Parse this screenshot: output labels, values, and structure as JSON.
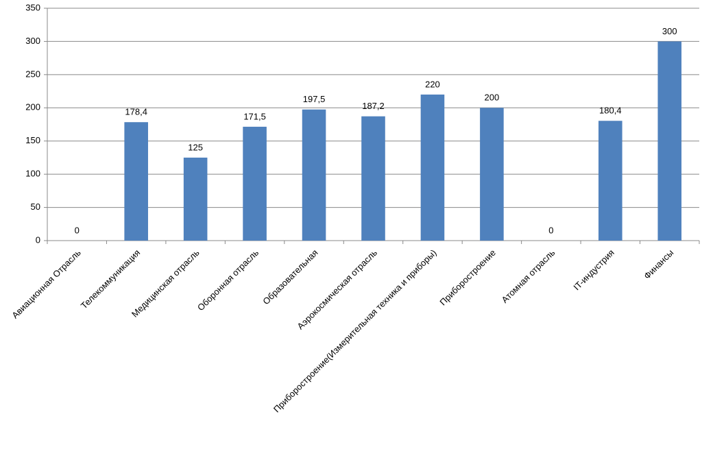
{
  "chart_data": {
    "type": "bar",
    "categories": [
      "Авиационная Отрасль",
      "Телекоммуникация",
      "Медицинская отрасль",
      "Оборонная отрасль",
      "Образовательная",
      "Аэрокосмическая отрасль",
      "Приборостроение(Измерительная техника и приборы)",
      "Приборостроение",
      "Атомная отрасль",
      "IT-индустрия",
      "Финансы"
    ],
    "values": [
      0,
      178.4,
      125,
      171.5,
      197.5,
      187.2,
      220,
      200,
      0,
      180.4,
      300
    ],
    "value_labels": [
      "0",
      "178,4",
      "125",
      "171,5",
      "197,5",
      "187,2",
      "220",
      "200",
      "0",
      "180,4",
      "300"
    ],
    "color": "#4f81bd",
    "ylim": [
      0,
      350
    ],
    "yticks": [
      0,
      50,
      100,
      150,
      200,
      250,
      300,
      350
    ],
    "grid": true
  }
}
